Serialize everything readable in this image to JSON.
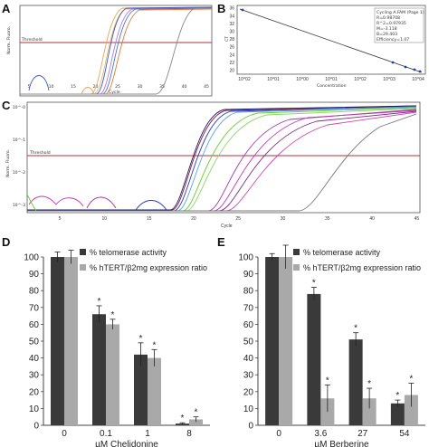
{
  "panels": {
    "A": {
      "label": "A",
      "ylabel": "Norm. Fluoro.",
      "xlabel": "Cycle",
      "threshold_label": "Threshold",
      "x_ticks": [
        "5",
        "10",
        "15",
        "20",
        "25",
        "30",
        "35",
        "40",
        "45"
      ]
    },
    "B": {
      "label": "B",
      "ylabel": "CT",
      "xlabel": "Concentration",
      "y_ticks": [
        "20",
        "22",
        "24",
        "26",
        "28",
        "30",
        "32",
        "34",
        "36"
      ],
      "x_ticks": [
        "10^02",
        "10^01",
        "10^00",
        "10^01",
        "10^02",
        "10^03",
        "10^04"
      ],
      "legend_lines": [
        "Cycling A.FAM (Page 1)",
        "R=0.98708",
        "R^2=0.97935",
        "M=-3.118",
        "B=29.403",
        "Efficiency=1.07"
      ]
    },
    "C": {
      "label": "C",
      "ylabel": "Norm. Fluoro.",
      "xlabel": "Cycle",
      "threshold_label": "Threshold",
      "y_ticks": [
        "10^-0",
        "10^-1",
        "10^-2",
        "10^-3"
      ],
      "x_ticks": [
        "5",
        "10",
        "15",
        "20",
        "25",
        "30",
        "35",
        "40",
        "45"
      ]
    },
    "D": {
      "label": "D"
    },
    "E": {
      "label": "E"
    }
  },
  "colors": {
    "telomerase": "#3a3a3a",
    "htert": "#a9a9a9",
    "threshold": "#b0303a"
  },
  "chart_data": [
    {
      "type": "bar",
      "panel": "D",
      "categories": [
        "0",
        "0.1",
        "1",
        "8"
      ],
      "xlabel": "µM Chelidonine",
      "ylabel": "",
      "ylim": [
        0,
        100
      ],
      "y_ticks": [
        0,
        10,
        20,
        30,
        40,
        50,
        60,
        70,
        80,
        90,
        100
      ],
      "series": [
        {
          "name": "% telomerase activity",
          "values": [
            100,
            66,
            42,
            1
          ],
          "errors": [
            3,
            5,
            7,
            0.5
          ]
        },
        {
          "name": "% hTERT/β2mg expression ratio",
          "values": [
            100,
            60,
            40,
            3.5
          ],
          "errors": [
            4,
            3,
            5,
            1.5
          ]
        }
      ],
      "markers": [
        [
          "",
          "*",
          "*",
          "*"
        ],
        [
          "",
          "*",
          "*",
          "*"
        ]
      ]
    },
    {
      "type": "bar",
      "panel": "E",
      "categories": [
        "0",
        "3.6",
        "27",
        "54"
      ],
      "xlabel": "µM Berberine",
      "ylabel": "",
      "ylim": [
        0,
        100
      ],
      "y_ticks": [
        0,
        10,
        20,
        30,
        40,
        50,
        60,
        70,
        80,
        90,
        100
      ],
      "series": [
        {
          "name": "% telomerase activity",
          "values": [
            100,
            78,
            51,
            13
          ],
          "errors": [
            2,
            4,
            4,
            2
          ]
        },
        {
          "name": "% hTERT/β2mg expression ratio",
          "values": [
            100,
            16,
            16,
            18
          ],
          "errors": [
            7,
            8,
            6,
            7
          ]
        }
      ],
      "markers": [
        [
          "",
          "*",
          "*",
          "*"
        ],
        [
          "",
          "*",
          "*",
          "*"
        ]
      ]
    }
  ]
}
